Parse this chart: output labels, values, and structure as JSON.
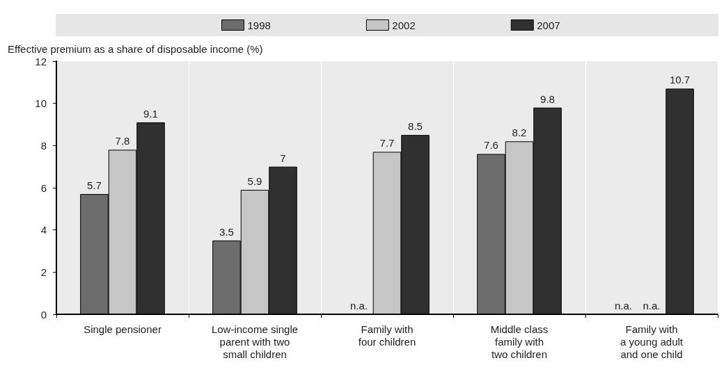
{
  "chart_data": {
    "type": "bar",
    "ylabel": "Effective premium as a share of disposable income (%)",
    "categories": [
      "Single pensioner",
      "Low-income single\nparent with two\nsmall children",
      "Family with\nfour children",
      "Middle class\nfamily with\ntwo children",
      "Family with\na young adult\nand one child"
    ],
    "series": [
      {
        "name": "1998",
        "color": "#6d6d6d",
        "values": [
          5.7,
          3.5,
          null,
          7.6,
          null
        ],
        "value_labels": [
          "5.7",
          "3.5",
          "n.a.",
          "7.6",
          "n.a."
        ]
      },
      {
        "name": "2002",
        "color": "#c6c6c6",
        "values": [
          7.8,
          5.9,
          7.7,
          8.2,
          null
        ],
        "value_labels": [
          "7.8",
          "5.9",
          "7.7",
          "8.2",
          "n.a."
        ]
      },
      {
        "name": "2007",
        "color": "#303030",
        "values": [
          9.1,
          7,
          8.5,
          9.8,
          10.7
        ],
        "value_labels": [
          "9.1",
          "7",
          "8.5",
          "9.8",
          "10.7"
        ]
      }
    ],
    "ylim": [
      0,
      12
    ],
    "yticks": [
      0,
      2,
      4,
      6,
      8,
      10,
      12
    ],
    "grid": "x",
    "legend": "top"
  }
}
